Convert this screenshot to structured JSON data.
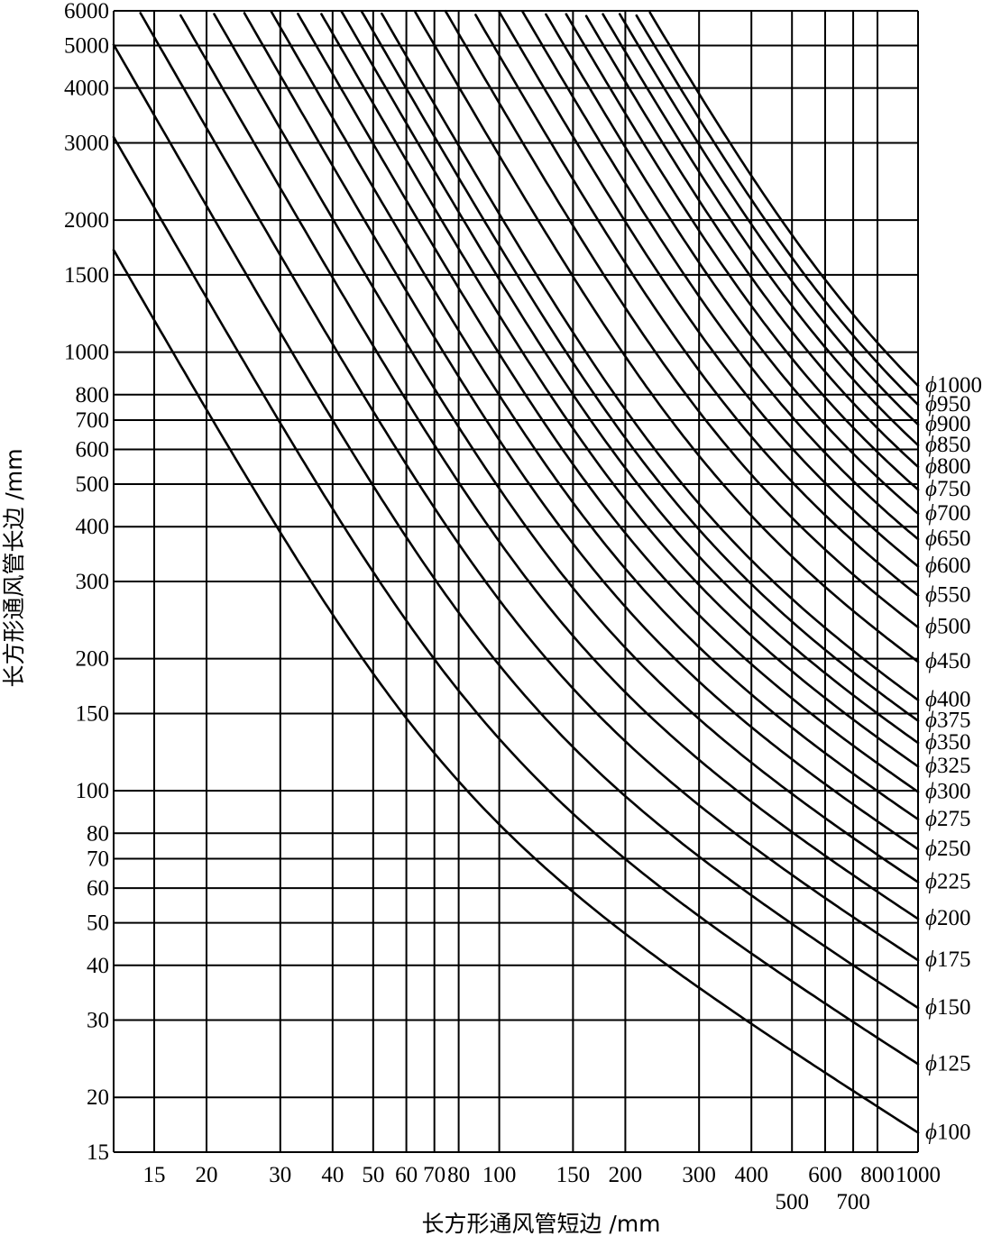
{
  "chart_data": {
    "type": "line",
    "title": "",
    "xlabel": "长方形通风管短边 /mm",
    "ylabel": "长方形通风管长边 /mm",
    "x_scale": "log",
    "y_scale": "log",
    "xlim": [
      12,
      1000
    ],
    "ylim": [
      15,
      6000
    ],
    "grid": true,
    "x_ticks_row1": [
      "15",
      "20",
      "30",
      "40",
      "50",
      "60",
      "70",
      "80",
      "100",
      "150",
      "200",
      "300",
      "400",
      "600",
      "800",
      "1000"
    ],
    "x_ticks_row2": [
      "500",
      "700"
    ],
    "y_ticks": [
      "15",
      "20",
      "30",
      "40",
      "50",
      "60",
      "70",
      "80",
      "100",
      "150",
      "200",
      "300",
      "400",
      "500",
      "600",
      "700",
      "800",
      "1000",
      "1500",
      "2000",
      "3000",
      "4000",
      "5000",
      "6000"
    ],
    "label_prefix": "ϕ",
    "series": [
      {
        "name": "100",
        "diameter": 100
      },
      {
        "name": "125",
        "diameter": 125
      },
      {
        "name": "150",
        "diameter": 150
      },
      {
        "name": "175",
        "diameter": 175
      },
      {
        "name": "200",
        "diameter": 200
      },
      {
        "name": "225",
        "diameter": 225
      },
      {
        "name": "250",
        "diameter": 250
      },
      {
        "name": "275",
        "diameter": 275
      },
      {
        "name": "300",
        "diameter": 300
      },
      {
        "name": "325",
        "diameter": 325
      },
      {
        "name": "350",
        "diameter": 350
      },
      {
        "name": "375",
        "diameter": 375
      },
      {
        "name": "400",
        "diameter": 400
      },
      {
        "name": "450",
        "diameter": 450
      },
      {
        "name": "500",
        "diameter": 500
      },
      {
        "name": "550",
        "diameter": 550
      },
      {
        "name": "600",
        "diameter": 600
      },
      {
        "name": "650",
        "diameter": 650
      },
      {
        "name": "700",
        "diameter": 700
      },
      {
        "name": "750",
        "diameter": 750
      },
      {
        "name": "800",
        "diameter": 800
      },
      {
        "name": "850",
        "diameter": 850
      },
      {
        "name": "900",
        "diameter": 900
      },
      {
        "name": "950",
        "diameter": 950
      },
      {
        "name": "1000",
        "diameter": 1000
      }
    ]
  }
}
